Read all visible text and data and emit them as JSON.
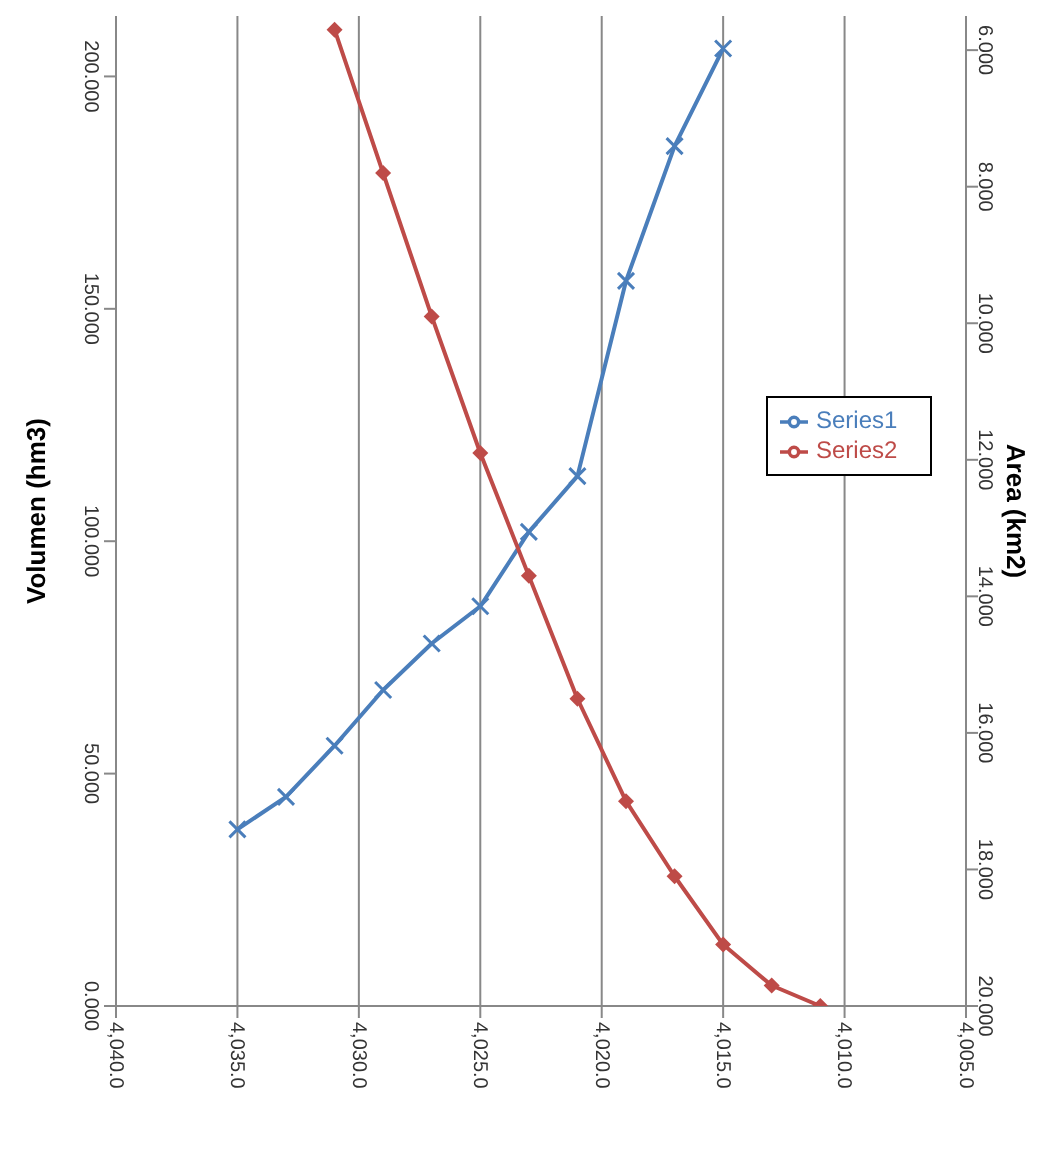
{
  "chart_data": {
    "type": "line",
    "ylabel": "Volumen (hm3)",
    "y2label": "Area (km2)",
    "xlim": [
      4040,
      4005
    ],
    "xticks": [
      {
        "value": 4040,
        "label": "4,040.0"
      },
      {
        "value": 4035,
        "label": "4,035.0"
      },
      {
        "value": 4030,
        "label": "4,030.0"
      },
      {
        "value": 4025,
        "label": "4,025.0"
      },
      {
        "value": 4020,
        "label": "4,020.0"
      },
      {
        "value": 4015,
        "label": "4,015.0"
      },
      {
        "value": 4010,
        "label": "4,010.0"
      },
      {
        "value": 4005,
        "label": "4,005.0"
      }
    ],
    "ylim": [
      0,
      213
    ],
    "yticks": [
      {
        "value": 0,
        "label": "0.000"
      },
      {
        "value": 50,
        "label": "50.000"
      },
      {
        "value": 100,
        "label": "100.000"
      },
      {
        "value": 150,
        "label": "150.000"
      },
      {
        "value": 200,
        "label": "200.000"
      }
    ],
    "y2lim": [
      20,
      5.5
    ],
    "y2ticks": [
      {
        "value": 6,
        "label": "6.000"
      },
      {
        "value": 8,
        "label": "8.000"
      },
      {
        "value": 10,
        "label": "10.000"
      },
      {
        "value": 12,
        "label": "12.000"
      },
      {
        "value": 14,
        "label": "14.000"
      },
      {
        "value": 16,
        "label": "16.000"
      },
      {
        "value": 18,
        "label": "18.000"
      },
      {
        "value": 20,
        "label": "20.000"
      }
    ],
    "grid": "x",
    "legend": "right",
    "line_style": "solid",
    "series": [
      {
        "name": "Series1",
        "color": "#4a7ebb",
        "marker": "cross",
        "x": [
          4035,
          4033,
          4031,
          4029,
          4027,
          4025,
          4023,
          4021,
          4019,
          4017,
          4015
        ],
        "values": [
          38,
          45,
          56,
          68,
          78,
          86,
          102,
          114,
          156,
          185,
          206
        ]
      },
      {
        "name": "Series2",
        "color": "#be4b48",
        "marker": "diamond",
        "axis": "y2",
        "x": [
          4031,
          4029,
          4027,
          4025,
          4023,
          4021,
          4019,
          4017,
          4015,
          4013,
          4011
        ],
        "values": [
          5.7,
          7.8,
          9.9,
          11.9,
          13.7,
          15.5,
          17.0,
          18.1,
          19.1,
          19.7,
          20.0
        ]
      }
    ]
  }
}
